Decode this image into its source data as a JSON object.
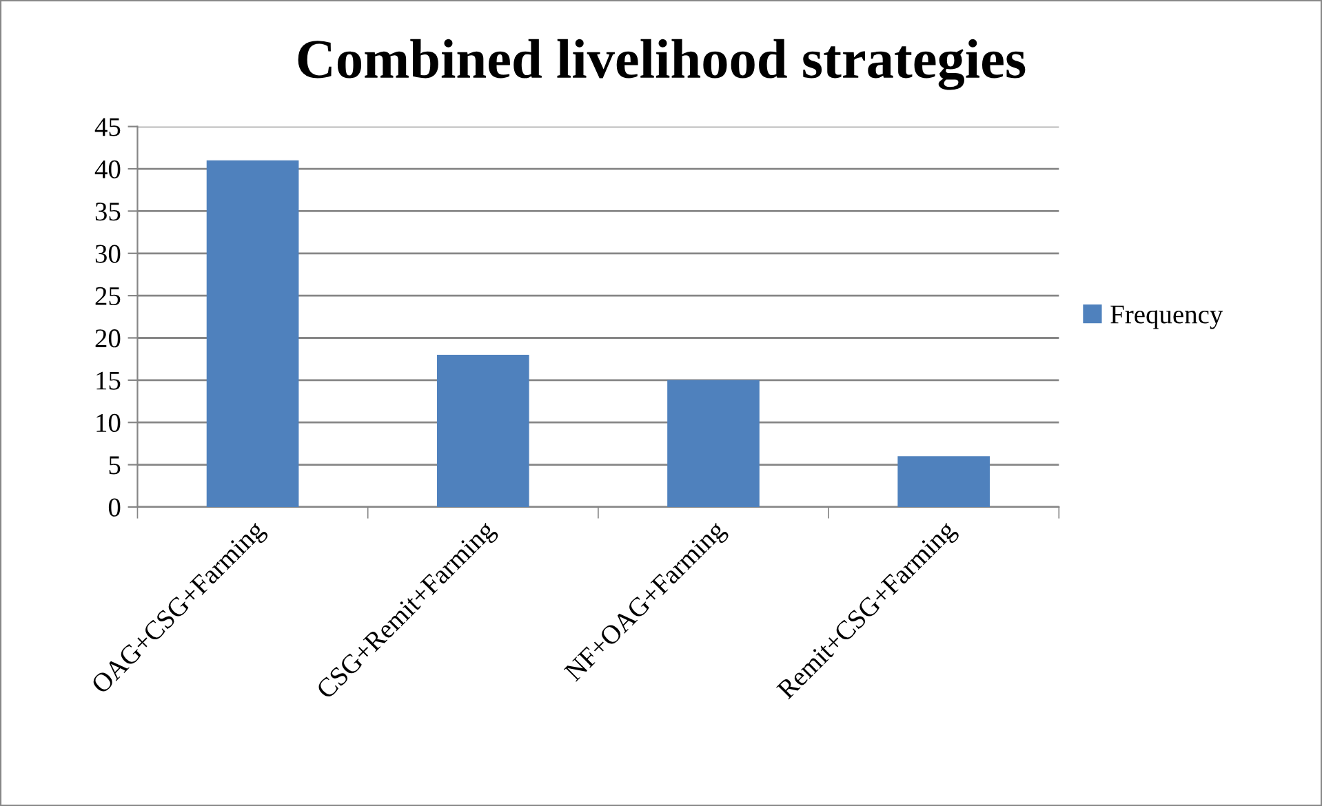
{
  "chart_data": {
    "type": "bar",
    "title": "Combined livelihood strategies",
    "categories": [
      "OAG+CSG+Farming",
      "CSG+Remit+Farming",
      "NF+OAG+Farming",
      "Remit+CSG+Farming"
    ],
    "series": [
      {
        "name": "Frequency",
        "color": "#4f81bd",
        "values": [
          41,
          18,
          15,
          6
        ]
      }
    ],
    "ylim": [
      0,
      45
    ],
    "yticks": [
      0,
      5,
      10,
      15,
      20,
      25,
      30,
      35,
      40,
      45
    ],
    "grid": "y",
    "legend": "right"
  }
}
